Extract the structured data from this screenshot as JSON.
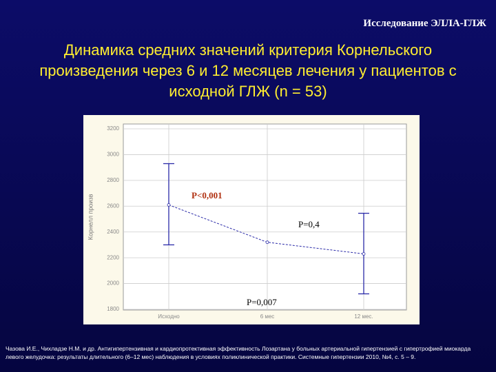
{
  "header": "Исследование ЭЛЛА-ГЛЖ",
  "title": "Динамика средних значений критерия Корнельского произведения через 6 и  12 месяцев лечения у пациентов с исходной ГЛЖ (n = 53)",
  "chart_data": {
    "type": "line",
    "y_label": "Корнелл произв",
    "categories": [
      "Исходно",
      "6 мес",
      "12 мес."
    ],
    "series": [
      {
        "name": "Корнелл произв",
        "color": "#2a2aa8",
        "values": [
          2610,
          2320,
          2230
        ],
        "lower": [
          2300,
          null,
          1920
        ],
        "upper": [
          2930,
          null,
          2545
        ]
      }
    ],
    "ylim": [
      1800,
      3200
    ],
    "yticks": [
      1800,
      2000,
      2200,
      2400,
      2600,
      2800,
      3000,
      3200
    ],
    "grid": true,
    "annotations": [
      {
        "text": "P<0,001",
        "color": "#b03010"
      },
      {
        "text": "P=0,4",
        "color": "#000000"
      },
      {
        "text": "P=0,007",
        "color": "#000000"
      }
    ]
  },
  "footnote": "Чазова И.Е., Чихладзе Н.М. и др. Антигипертензивная и кардиопротективная эффективность Лозартана у больных артериальной гипертензией с гипертрофией миокарда левого желудочка: результаты длительного (6–12 мес) наблюдения в условиях поликлинической практики. Системные гипертензии 2010, №4, с. 5 – 9."
}
